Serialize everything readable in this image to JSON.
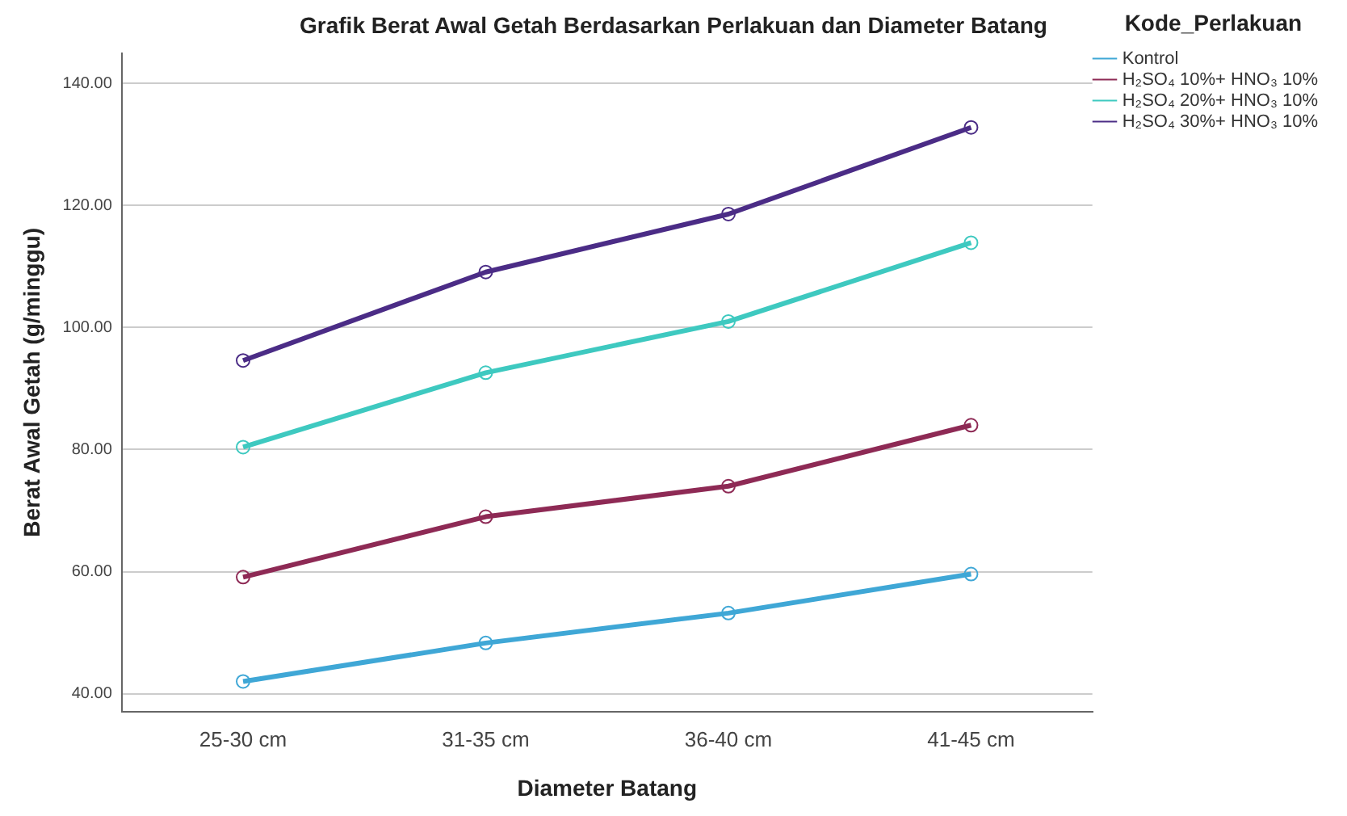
{
  "chart_data": {
    "type": "line",
    "title": "Grafik Berat Awal Getah Berdasarkan Perlakuan dan Diameter Batang",
    "xlabel": "Diameter Batang",
    "ylabel": "Berat Awal Getah (g/minggu)",
    "legend_title": "Kode_Perlakuan",
    "categories": [
      "25-30 cm",
      "31-35 cm",
      "36-40 cm",
      "41-45 cm"
    ],
    "series": [
      {
        "name": "Kontrol",
        "color": "#3fa7d6",
        "values": [
          42.0,
          48.3,
          53.2,
          59.6
        ]
      },
      {
        "name": "H₂SO₄ 10%+ HNO₃ 10%",
        "color": "#8e2a55",
        "values": [
          59.1,
          69.0,
          74.0,
          84.0
        ]
      },
      {
        "name": "H₂SO₄ 20%+ HNO₃ 10%",
        "color": "#3ec9c0",
        "values": [
          80.4,
          92.6,
          101.0,
          113.9
        ]
      },
      {
        "name": "H₂SO₄ 30%+ HNO₃ 10%",
        "color": "#4b2c86",
        "values": [
          94.6,
          109.1,
          118.6,
          132.8
        ]
      }
    ],
    "ylim": [
      37,
      145
    ],
    "yticks": [
      {
        "value": 40,
        "label": "40.00"
      },
      {
        "value": 60,
        "label": "60.00"
      },
      {
        "value": 80,
        "label": "80.00"
      },
      {
        "value": 100,
        "label": "100.00"
      },
      {
        "value": 120,
        "label": "120.00"
      },
      {
        "value": 140,
        "label": "140.00"
      }
    ],
    "grid": "y",
    "legend": "top right",
    "marker": "circle",
    "line_style": "solid"
  }
}
